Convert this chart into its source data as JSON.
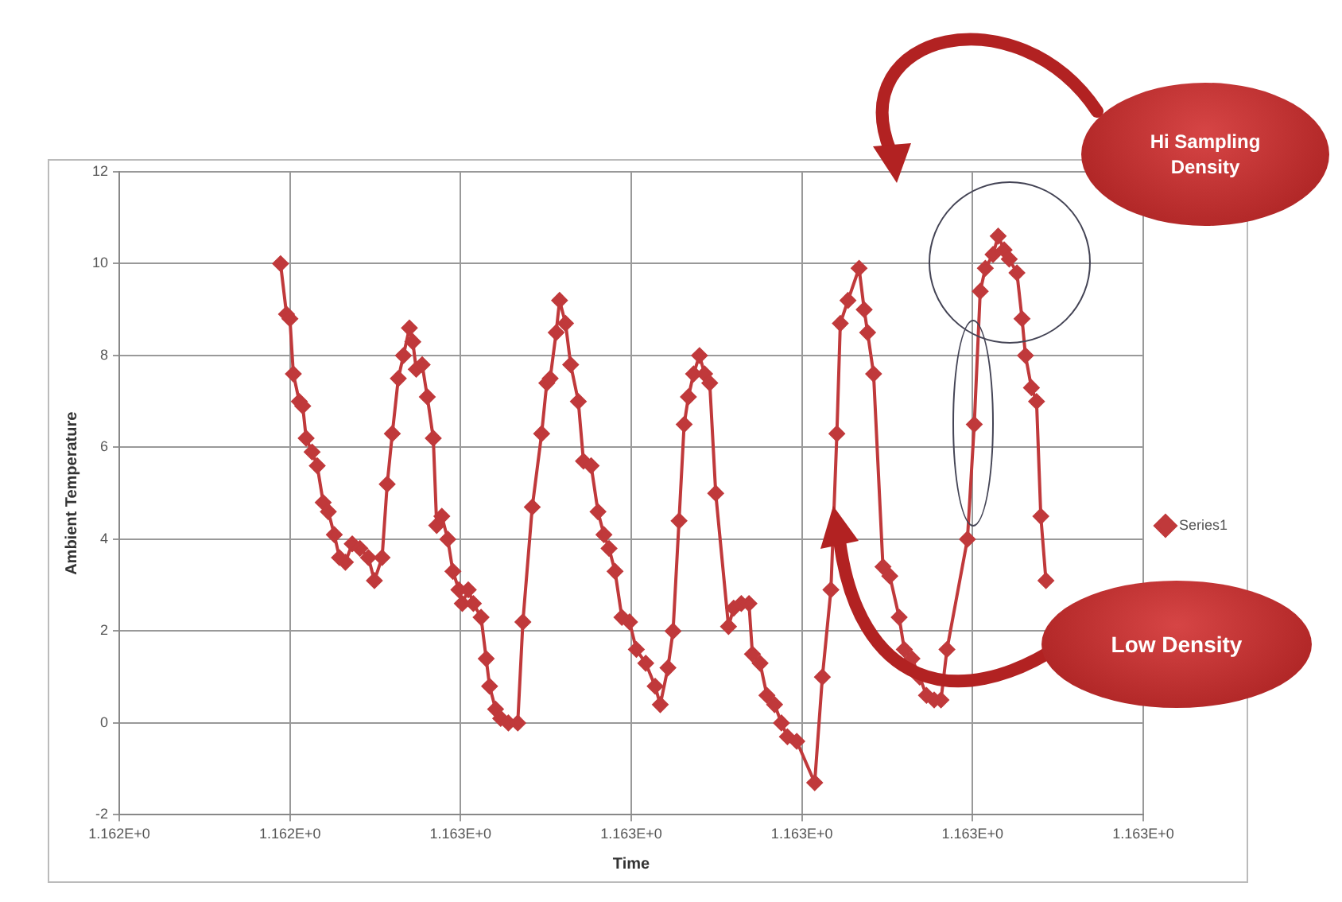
{
  "chart_data": {
    "type": "line",
    "xlabel": "Time",
    "ylabel": "Ambient Temperature",
    "xlim": [
      1.1621,
      1.1633
    ],
    "xticks": [
      {
        "value": 1.1621,
        "label": "1.162E+0"
      },
      {
        "value": 1.1623,
        "label": "1.162E+0"
      },
      {
        "value": 1.1625,
        "label": "1.163E+0"
      },
      {
        "value": 1.1627,
        "label": "1.163E+0"
      },
      {
        "value": 1.1629,
        "label": "1.163E+0"
      },
      {
        "value": 1.1631,
        "label": "1.163E+0"
      },
      {
        "value": 1.1633,
        "label": "1.163E+0"
      }
    ],
    "ylim": [
      -2,
      12
    ],
    "yticks": [
      -2,
      0,
      2,
      4,
      6,
      8,
      10,
      12
    ],
    "grid": true,
    "legend": "right",
    "marker": "diamond",
    "line_style": "solid",
    "series": [
      {
        "name": "Series1",
        "color": "#c0393b",
        "x": [
          1.162289,
          1.162296,
          1.1623,
          1.162304,
          1.162311,
          1.162315,
          1.162319,
          1.162326,
          1.162332,
          1.162339,
          1.162345,
          1.162352,
          1.162358,
          1.162365,
          1.162373,
          1.162382,
          1.162392,
          1.162399,
          1.162408,
          1.162414,
          1.16242,
          1.162427,
          1.162433,
          1.16244,
          1.162444,
          1.162448,
          1.162455,
          1.162461,
          1.162468,
          1.162472,
          1.162478,
          1.162485,
          1.162491,
          1.162498,
          1.162502,
          1.162509,
          1.162515,
          1.162524,
          1.16253,
          1.162534,
          1.162541,
          1.162547,
          1.162556,
          1.162567,
          1.162573,
          1.162584,
          1.162595,
          1.162601,
          1.162605,
          1.162612,
          1.162616,
          1.162623,
          1.162629,
          1.162638,
          1.162644,
          1.162653,
          1.162661,
          1.162668,
          1.162674,
          1.162681,
          1.162689,
          1.162698,
          1.162706,
          1.162717,
          1.162728,
          1.162734,
          1.162743,
          1.162749,
          1.162756,
          1.162762,
          1.162767,
          1.162773,
          1.16278,
          1.162786,
          1.162792,
          1.162799,
          1.162814,
          1.16282,
          1.162829,
          1.162838,
          1.162842,
          1.162851,
          1.162859,
          1.162868,
          1.162876,
          1.162883,
          1.162894,
          1.162915,
          1.162924,
          1.162934,
          1.162941,
          1.162945,
          1.162954,
          1.162967,
          1.162973,
          1.162977,
          1.162984,
          1.162995,
          1.163003,
          1.163014,
          1.16302,
          1.163029,
          1.163038,
          1.163046,
          1.163055,
          1.163063,
          1.16307,
          1.163094,
          1.163102,
          1.163109,
          1.163115,
          1.163124,
          1.16313,
          1.163137,
          1.163143,
          1.163152,
          1.163158,
          1.163162,
          1.163169,
          1.163175,
          1.16318,
          1.163186
        ],
        "values": [
          10.0,
          8.9,
          8.8,
          7.6,
          7.0,
          6.9,
          6.2,
          5.9,
          5.6,
          4.8,
          4.6,
          4.1,
          3.6,
          3.5,
          3.9,
          3.8,
          3.6,
          3.1,
          3.6,
          5.2,
          6.3,
          7.5,
          8.0,
          8.6,
          8.3,
          7.7,
          7.8,
          7.1,
          6.2,
          4.3,
          4.5,
          4.0,
          3.3,
          2.9,
          2.6,
          2.9,
          2.6,
          2.3,
          1.4,
          0.8,
          0.3,
          0.1,
          0.0,
          0.0,
          2.2,
          4.7,
          6.3,
          7.4,
          7.5,
          8.5,
          9.2,
          8.7,
          7.8,
          7.0,
          5.7,
          5.6,
          4.6,
          4.1,
          3.8,
          3.3,
          2.3,
          2.2,
          1.6,
          1.3,
          0.8,
          0.4,
          1.2,
          2.0,
          4.4,
          6.5,
          7.1,
          7.6,
          8.0,
          7.6,
          7.4,
          5.0,
          2.1,
          2.5,
          2.6,
          2.6,
          1.5,
          1.3,
          0.6,
          0.4,
          0.0,
          -0.3,
          -0.4,
          -1.3,
          1.0,
          2.9,
          6.3,
          8.7,
          9.2,
          9.9,
          9.0,
          8.5,
          7.6,
          3.4,
          3.2,
          2.3,
          1.6,
          1.4,
          1.0,
          0.6,
          0.5,
          0.5,
          1.6,
          4.0,
          6.5,
          9.4,
          9.9,
          10.2,
          10.6,
          10.3,
          10.1,
          9.8,
          8.8,
          8.0,
          7.3,
          7.0,
          4.5,
          3.1
        ]
      }
    ],
    "annotations": [
      "Hi Sampling Density",
      "Low Density"
    ]
  }
}
